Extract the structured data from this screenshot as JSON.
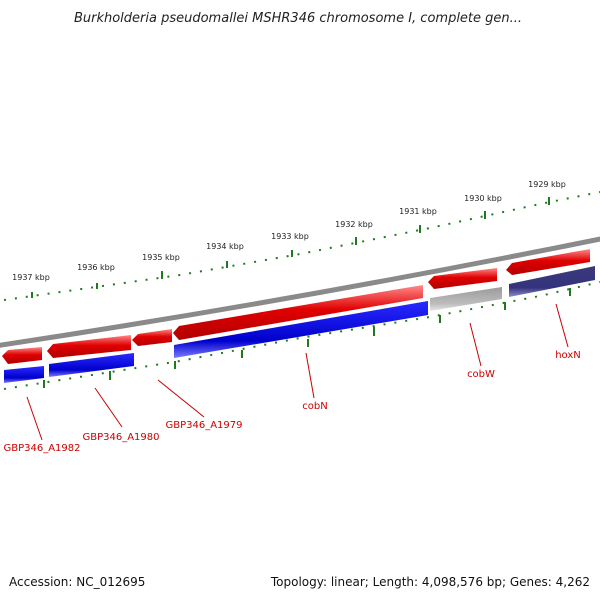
{
  "title": "Burkholderia pseudomallei MSHR346 chromosome I, complete gen...",
  "footer": {
    "accession": "Accession: NC_012695",
    "summary": "Topology: linear; Length: 4,098,576 bp; Genes: 4,262"
  },
  "ruler": {
    "tick_labels": [
      "1937 kbp",
      "1936 kbp",
      "1935 kbp",
      "1934 kbp",
      "1933 kbp",
      "1932 kbp",
      "1931 kbp",
      "1930 kbp",
      "1929 kbp"
    ]
  },
  "genes": [
    {
      "label": "GBP346_A1982"
    },
    {
      "label": "GBP346_A1980"
    },
    {
      "label": "GBP346_A1979"
    },
    {
      "label": "cobN"
    },
    {
      "label": "cobW"
    },
    {
      "label": "hoxN"
    }
  ],
  "colors": {
    "gene_red": "#e00000",
    "cds_blue": "#0a0ad6",
    "cds_gray": "#b4b4b4",
    "cds_slate": "#3c3a8a",
    "ruler_green": "#1f7a1f",
    "backbone_gray": "#8a8a8a",
    "label_red": "#cc0000"
  }
}
